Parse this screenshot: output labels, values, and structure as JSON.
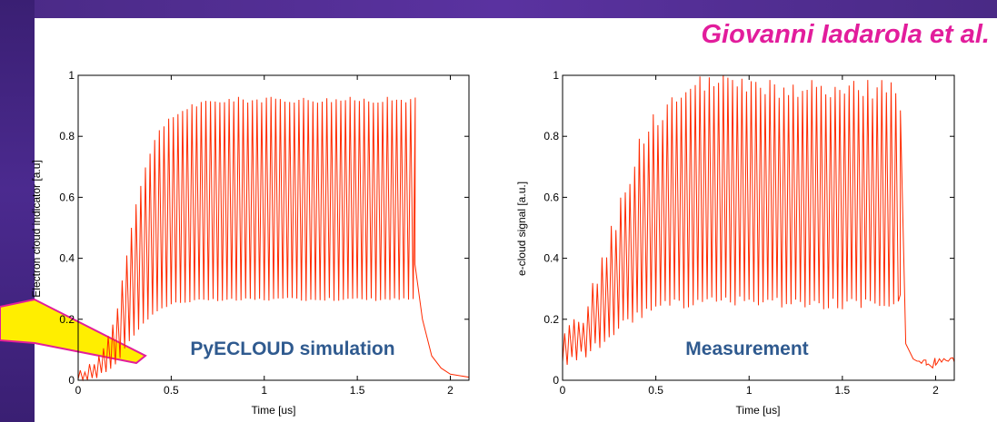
{
  "header": {
    "author": "Giovanni Iadarola et al."
  },
  "colors": {
    "trace": "#ff2a00",
    "annotation": "#2f5a8f",
    "author": "#e21d9c",
    "frame": "#4a2a86",
    "arrow": "#ffee00"
  },
  "chart_data": [
    {
      "type": "line",
      "title": "",
      "xlabel": "Time [us]",
      "ylabel": "Electron cloud indicator [a.u]",
      "annotation": "PyECLOUD simulation",
      "xlim": [
        0,
        2.1
      ],
      "ylim": [
        0,
        1
      ],
      "xticks": [
        0,
        0.5,
        1,
        1.5,
        2
      ],
      "xtick_labels": [
        "0",
        "0.5",
        "1",
        "1.5",
        "2"
      ],
      "yticks": [
        0,
        0.2,
        0.4,
        0.6,
        0.8,
        1
      ],
      "ytick_labels": [
        "0",
        "0.2",
        "0.4",
        "0.6",
        "0.8",
        "1"
      ],
      "grid": false,
      "description_of_trace": "bunch-train oscillation",
      "envelope": {
        "upper": [
          [
            0,
            0.02
          ],
          [
            0.1,
            0.06
          ],
          [
            0.2,
            0.2
          ],
          [
            0.3,
            0.55
          ],
          [
            0.4,
            0.78
          ],
          [
            0.5,
            0.86
          ],
          [
            0.6,
            0.9
          ],
          [
            0.8,
            0.92
          ],
          [
            1.0,
            0.92
          ],
          [
            1.2,
            0.92
          ],
          [
            1.4,
            0.92
          ],
          [
            1.6,
            0.92
          ],
          [
            1.8,
            0.92
          ]
        ],
        "lower": [
          [
            0,
            0.0
          ],
          [
            0.1,
            0.01
          ],
          [
            0.2,
            0.05
          ],
          [
            0.3,
            0.15
          ],
          [
            0.4,
            0.22
          ],
          [
            0.5,
            0.25
          ],
          [
            0.6,
            0.26
          ],
          [
            1.0,
            0.265
          ],
          [
            1.4,
            0.265
          ],
          [
            1.8,
            0.265
          ]
        ]
      },
      "train_end": 1.81,
      "decay": [
        [
          1.81,
          0.38
        ],
        [
          1.85,
          0.2
        ],
        [
          1.9,
          0.08
        ],
        [
          1.95,
          0.04
        ],
        [
          2.0,
          0.02
        ],
        [
          2.1,
          0.01
        ]
      ],
      "bunch_spacing_us": 0.025
    },
    {
      "type": "line",
      "title": "",
      "xlabel": "Time [us]",
      "ylabel": "e-cloud signal [a.u.]",
      "annotation": "Measurement",
      "xlim": [
        0,
        2.1
      ],
      "ylim": [
        0,
        1
      ],
      "xticks": [
        0,
        0.5,
        1,
        1.5,
        2
      ],
      "xtick_labels": [
        "0",
        "0.5",
        "1",
        "1.5",
        "2"
      ],
      "yticks": [
        0,
        0.2,
        0.4,
        0.6,
        0.8,
        1
      ],
      "ytick_labels": [
        "0",
        "0.2",
        "0.4",
        "0.6",
        "0.8",
        "1"
      ],
      "grid": false,
      "envelope": {
        "upper": [
          [
            0,
            0.12
          ],
          [
            0.1,
            0.2
          ],
          [
            0.2,
            0.35
          ],
          [
            0.3,
            0.55
          ],
          [
            0.4,
            0.75
          ],
          [
            0.5,
            0.86
          ],
          [
            0.6,
            0.92
          ],
          [
            0.7,
            0.95
          ],
          [
            0.8,
            0.98
          ],
          [
            1.0,
            0.96
          ],
          [
            1.2,
            0.95
          ],
          [
            1.4,
            0.95
          ],
          [
            1.6,
            0.95
          ],
          [
            1.75,
            0.97
          ],
          [
            1.8,
            0.9
          ]
        ],
        "lower": [
          [
            0,
            0.05
          ],
          [
            0.1,
            0.08
          ],
          [
            0.2,
            0.12
          ],
          [
            0.3,
            0.17
          ],
          [
            0.4,
            0.21
          ],
          [
            0.5,
            0.24
          ],
          [
            0.6,
            0.25
          ],
          [
            1.0,
            0.26
          ],
          [
            1.4,
            0.25
          ],
          [
            1.8,
            0.25
          ]
        ]
      },
      "train_end": 1.81,
      "decay": [
        [
          1.81,
          0.28
        ],
        [
          1.84,
          0.12
        ],
        [
          1.88,
          0.07
        ],
        [
          1.95,
          0.05
        ],
        [
          2.0,
          0.05
        ],
        [
          2.1,
          0.06
        ]
      ],
      "bunch_spacing_us": 0.025
    }
  ]
}
